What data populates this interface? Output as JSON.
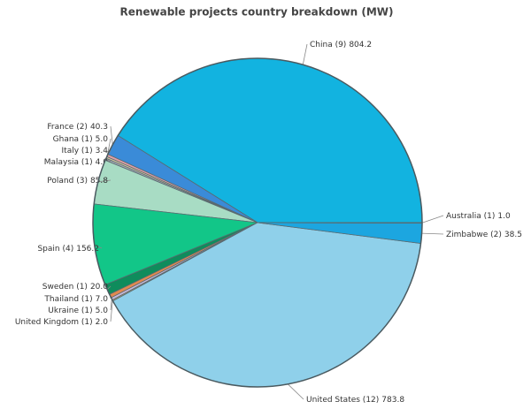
{
  "chart_data": {
    "type": "pie",
    "title": "Renewable projects country breakdown (MW)",
    "categories": [
      "China (9)",
      "France (2)",
      "Ghana (1)",
      "Italy (1)",
      "Malaysia (1)",
      "Poland (3)",
      "Spain (4)",
      "Sweden (1)",
      "Thailand (1)",
      "Ukraine (1)",
      "United Kingdom (1)",
      "United States (12)",
      "Zimbabwe (2)",
      "Australia (1)"
    ],
    "values": [
      804.2,
      40.3,
      5.0,
      3.4,
      4.0,
      85.8,
      156.2,
      20.0,
      7.0,
      5.0,
      2.0,
      783.8,
      38.5,
      1.0
    ],
    "value_labels": [
      "804.2",
      "40.3",
      "5.0",
      "3.4",
      "4.0",
      "85.8",
      "156.2",
      "20.0",
      "7.0",
      "5.0",
      "2.0",
      "783.8",
      "38.5",
      "1.0"
    ],
    "colors": [
      "#12b3e0",
      "#3a8bd8",
      "#e0a0a8",
      "#d8c8a0",
      "#a0a8b0",
      "#a8dcc4",
      "#12c688",
      "#0f8c5c",
      "#e08a50",
      "#c8b8d8",
      "#e8c870",
      "#8fd0ea",
      "#1ca6e0",
      "#9aa4ac"
    ]
  }
}
